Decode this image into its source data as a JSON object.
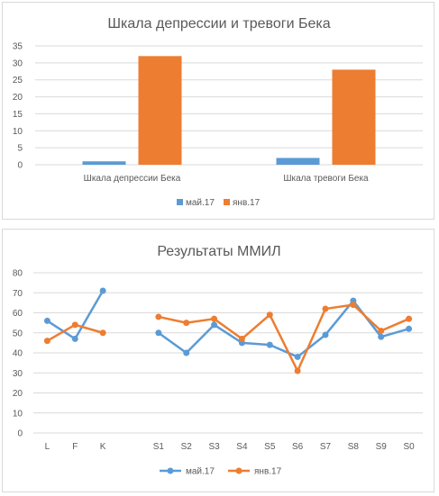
{
  "chart_data": [
    {
      "type": "bar",
      "title": "Шкала депрессии и тревоги Бека",
      "categories": [
        "Шкала депрессии Бека",
        "Шкала тревоги Бека"
      ],
      "series": [
        {
          "name": "май.17",
          "values": [
            1,
            2
          ],
          "color": "#5B9BD5"
        },
        {
          "name": "янв.17",
          "values": [
            32,
            28
          ],
          "color": "#ED7D31"
        }
      ],
      "ylim": [
        0,
        35
      ],
      "yticks": [
        0,
        5,
        10,
        15,
        20,
        25,
        30,
        35
      ],
      "grid": true,
      "legend": "bottom"
    },
    {
      "type": "line",
      "title": "Результаты ММИЛ",
      "categories": [
        "L",
        "F",
        "K",
        "",
        "S1",
        "S2",
        "S3",
        "S4",
        "S5",
        "S6",
        "S7",
        "S8",
        "S9",
        "S0"
      ],
      "series": [
        {
          "name": "май.17",
          "values": [
            56,
            47,
            71,
            null,
            50,
            40,
            54,
            45,
            44,
            38,
            49,
            66,
            48,
            52
          ],
          "color": "#5B9BD5"
        },
        {
          "name": "янв.17",
          "values": [
            46,
            54,
            50,
            null,
            58,
            55,
            57,
            47,
            59,
            31,
            62,
            64,
            51,
            57
          ],
          "color": "#ED7D31"
        }
      ],
      "ylim": [
        0,
        80
      ],
      "yticks": [
        0,
        10,
        20,
        30,
        40,
        50,
        60,
        70,
        80
      ],
      "grid": true,
      "legend": "bottom"
    }
  ]
}
